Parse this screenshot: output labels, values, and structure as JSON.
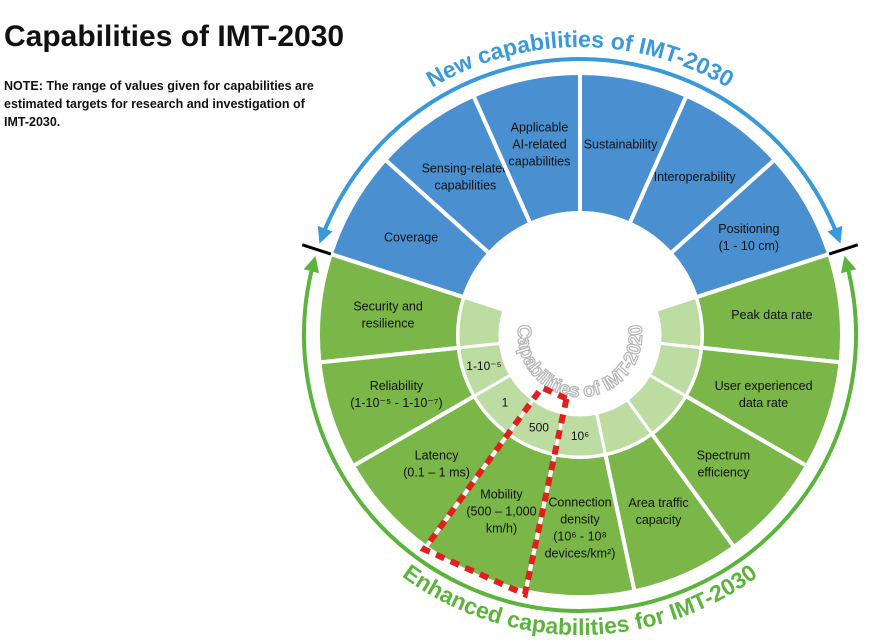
{
  "header": {
    "title": "Capabilities of IMT-2030",
    "note": [
      "NOTE: The range of values given for capabilities are",
      "estimated targets for research and investigation of",
      "IMT-2030."
    ]
  },
  "new_capabilities": {
    "label": "New capabilities of IMT-2030",
    "items": [
      {
        "lines": [
          "Coverage"
        ]
      },
      {
        "lines": [
          "Sensing-related",
          "capabilities"
        ]
      },
      {
        "lines": [
          "Applicable",
          "AI-related",
          "capabilities"
        ]
      },
      {
        "lines": [
          "Sustainability"
        ]
      },
      {
        "lines": [
          "Interoperability"
        ]
      },
      {
        "lines": [
          "Positioning",
          "(1 - 10 cm)"
        ]
      }
    ]
  },
  "enhanced_capabilities": {
    "label": "Enhanced capabilities for IMT-2030",
    "inner_label": "Capabilities of IMT-2020",
    "items": [
      {
        "lines": [
          "Peak data rate"
        ]
      },
      {
        "lines": [
          "User experienced",
          "data rate"
        ]
      },
      {
        "lines": [
          "Spectrum",
          "efficiency"
        ]
      },
      {
        "lines": [
          "Area traffic",
          "capacity"
        ]
      },
      {
        "lines": [
          "Connection",
          "density",
          "(10⁶ -  10⁸",
          "devices/km²)"
        ],
        "ring_value": "10⁶"
      },
      {
        "lines": [
          "Mobility",
          "(500 – 1,000",
          "km/h)"
        ],
        "ring_value": "500"
      },
      {
        "lines": [
          "Latency",
          "(0.1 – 1 ms)"
        ],
        "ring_value": "1"
      },
      {
        "lines": [
          "Reliability",
          "(1-10⁻⁵ - 1-10⁻⁷)"
        ],
        "ring_value": "1-10⁻⁵"
      },
      {
        "lines": [
          "Security and",
          "resilience"
        ]
      }
    ]
  }
}
